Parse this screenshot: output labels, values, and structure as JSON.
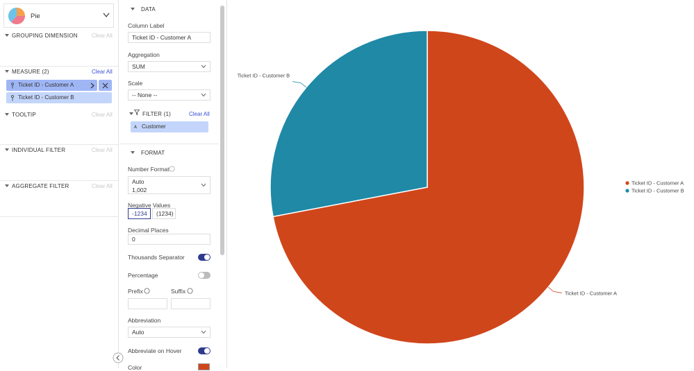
{
  "chart_type_selector": {
    "label": "Pie"
  },
  "left_panel": {
    "sections": [
      {
        "title": "GROUPING DIMENSION",
        "action": "Clear All"
      },
      {
        "title": "MEASURE (2)",
        "action": "Clear All",
        "items": [
          "Ticket ID - Customer A",
          "Ticket ID - Customer B"
        ]
      },
      {
        "title": "TOOLTIP",
        "action": "Clear All"
      },
      {
        "title": "INDIVIDUAL FILTER",
        "action": "Clear All"
      },
      {
        "title": "AGGREGATE FILTER",
        "action": "Clear All"
      }
    ]
  },
  "settings_panel": {
    "data_section": {
      "title": "DATA",
      "column_label_label": "Column Label",
      "column_label_value": "Ticket ID - Customer A",
      "aggregation_label": "Aggregation",
      "aggregation_value": "SUM",
      "scale_label": "Scale",
      "scale_value": "-- None --"
    },
    "filter_section": {
      "title": "FILTER (1)",
      "action": "Clear All",
      "items": [
        "Customer"
      ]
    },
    "format_section": {
      "title": "FORMAT",
      "number_format_label": "Number Format",
      "number_format_value": "Auto",
      "number_format_example": "1,002",
      "negative_values_label": "Negative Values",
      "negative_values_options": [
        "-1234",
        "(1234)"
      ],
      "decimal_places_label": "Decimal Places",
      "decimal_places_value": "0",
      "thousands_separator": {
        "label": "Thousands Separator",
        "on": true
      },
      "percentage": {
        "label": "Percentage",
        "on": false
      },
      "prefix_label": "Prefix",
      "suffix_label": "Suffix",
      "abbreviation_label": "Abbreviation",
      "abbreviation_value": "Auto",
      "abbreviate_on_hover": {
        "label": "Abbreviate on Hover",
        "on": true
      },
      "color_label": "Color",
      "color_value": "#d0461b"
    }
  },
  "chart_data": {
    "type": "pie",
    "categories": [
      "Ticket ID - Customer A",
      "Ticket ID - Customer B"
    ],
    "values": [
      72,
      28
    ],
    "colors": [
      "#d0461b",
      "#1f89a6"
    ],
    "legend": "right"
  }
}
